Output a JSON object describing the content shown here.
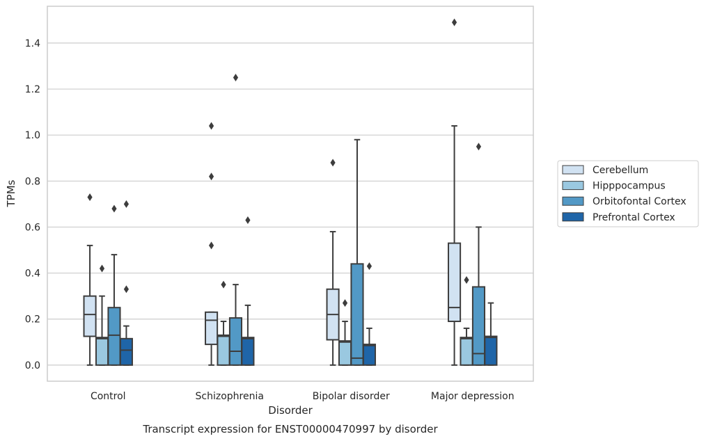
{
  "chart_data": {
    "type": "box",
    "title": "",
    "caption": "Transcript expression for ENST00000470997 by disorder",
    "xlabel": "Disorder",
    "ylabel": "TPMs",
    "ylim": [
      -0.07,
      1.56
    ],
    "yticks": [
      0.0,
      0.2,
      0.4,
      0.6,
      0.8,
      1.0,
      1.2,
      1.4
    ],
    "ytick_labels": [
      "0.0",
      "0.2",
      "0.4",
      "0.6",
      "0.8",
      "1.0",
      "1.2",
      "1.4"
    ],
    "grid": "horizontal",
    "legend_position": "right",
    "categories": [
      "Control",
      "Schizophrenia",
      "Bipolar disorder",
      "Major depression"
    ],
    "series": [
      {
        "name": "Cerebellum",
        "color": "#d1e2f2",
        "boxes": [
          {
            "whisker_low": 0.0,
            "q1": 0.125,
            "median": 0.22,
            "q3": 0.3,
            "whisker_high": 0.52,
            "outliers": [
              0.73
            ]
          },
          {
            "whisker_low": 0.0,
            "q1": 0.09,
            "median": 0.195,
            "q3": 0.23,
            "whisker_high": 0.23,
            "outliers": [
              0.52,
              0.82,
              1.04
            ]
          },
          {
            "whisker_low": 0.0,
            "q1": 0.11,
            "median": 0.22,
            "q3": 0.33,
            "whisker_high": 0.58,
            "outliers": [
              0.88
            ]
          },
          {
            "whisker_low": 0.0,
            "q1": 0.19,
            "median": 0.25,
            "q3": 0.53,
            "whisker_high": 1.04,
            "outliers": [
              1.49
            ]
          }
        ]
      },
      {
        "name": "Hipppocampus",
        "color": "#9ac8e0",
        "boxes": [
          {
            "whisker_low": 0.0,
            "q1": 0.0,
            "median": 0.115,
            "q3": 0.12,
            "whisker_high": 0.3,
            "outliers": [
              0.42
            ]
          },
          {
            "whisker_low": 0.0,
            "q1": 0.0,
            "median": 0.125,
            "q3": 0.13,
            "whisker_high": 0.19,
            "outliers": [
              0.35
            ]
          },
          {
            "whisker_low": 0.0,
            "q1": 0.0,
            "median": 0.1,
            "q3": 0.105,
            "whisker_high": 0.19,
            "outliers": [
              0.27
            ]
          },
          {
            "whisker_low": 0.0,
            "q1": 0.0,
            "median": 0.115,
            "q3": 0.12,
            "whisker_high": 0.16,
            "outliers": [
              0.37
            ]
          }
        ]
      },
      {
        "name": "Orbitofontal Cortex",
        "color": "#5299c6",
        "boxes": [
          {
            "whisker_low": 0.0,
            "q1": 0.0,
            "median": 0.13,
            "q3": 0.25,
            "whisker_high": 0.48,
            "outliers": [
              0.68
            ]
          },
          {
            "whisker_low": 0.0,
            "q1": 0.0,
            "median": 0.06,
            "q3": 0.205,
            "whisker_high": 0.35,
            "outliers": [
              1.25
            ]
          },
          {
            "whisker_low": 0.0,
            "q1": 0.0,
            "median": 0.03,
            "q3": 0.44,
            "whisker_high": 0.98,
            "outliers": []
          },
          {
            "whisker_low": 0.0,
            "q1": 0.0,
            "median": 0.05,
            "q3": 0.34,
            "whisker_high": 0.6,
            "outliers": [
              0.95
            ]
          }
        ]
      },
      {
        "name": "Prefrontal Cortex",
        "color": "#1f65a8",
        "boxes": [
          {
            "whisker_low": 0.0,
            "q1": 0.0,
            "median": 0.065,
            "q3": 0.115,
            "whisker_high": 0.17,
            "outliers": [
              0.33,
              0.7
            ]
          },
          {
            "whisker_low": 0.0,
            "q1": 0.0,
            "median": 0.115,
            "q3": 0.12,
            "whisker_high": 0.26,
            "outliers": [
              0.63
            ]
          },
          {
            "whisker_low": 0.0,
            "q1": 0.0,
            "median": 0.085,
            "q3": 0.09,
            "whisker_high": 0.16,
            "outliers": [
              0.43
            ]
          },
          {
            "whisker_low": 0.0,
            "q1": 0.0,
            "median": 0.12,
            "q3": 0.125,
            "whisker_high": 0.27,
            "outliers": []
          }
        ]
      }
    ]
  }
}
